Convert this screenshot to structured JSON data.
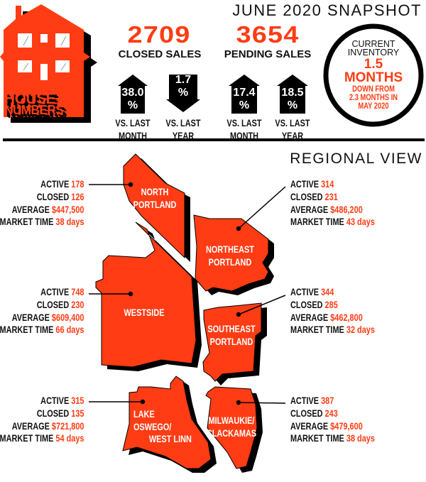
{
  "colors": {
    "accent": "#ff3c14",
    "ink": "#111111",
    "shadow": "#000000"
  },
  "logo": {
    "line1": "HOUSE",
    "line2": "NUMBERS",
    "icon": "house-icon"
  },
  "header": {
    "title": "JUNE 2020 SNAPSHOT"
  },
  "closed_sales": {
    "value": "2709",
    "label": "CLOSED SALES",
    "changes": [
      {
        "value": "38.0",
        "unit": "%",
        "direction": "up",
        "label1": "VS. LAST",
        "label2": "MONTH"
      },
      {
        "value": "1.7",
        "unit": "%",
        "direction": "down",
        "label1": "VS. LAST",
        "label2": "YEAR"
      }
    ]
  },
  "pending_sales": {
    "value": "3654",
    "label": "PENDING SALES",
    "changes": [
      {
        "value": "17.4",
        "unit": "%",
        "direction": "up",
        "label1": "VS. LAST",
        "label2": "MONTH"
      },
      {
        "value": "18.5",
        "unit": "%",
        "direction": "up",
        "label1": "VS. LAST",
        "label2": "YEAR"
      }
    ]
  },
  "inventory": {
    "line1": "CURRENT",
    "line2": "INVENTORY",
    "value": "1.5",
    "unit": "MONTHS",
    "note1": "DOWN FROM",
    "note2": "2.3 MONTHS IN",
    "note3": "MAY 2020"
  },
  "regional": {
    "title": "REGIONAL VIEW",
    "stat_labels": {
      "active": "ACTIVE",
      "closed": "CLOSED",
      "average": "AVERAGE",
      "market_time": "MARKET TIME"
    },
    "regions": [
      {
        "name1": "NORTH",
        "name2": "PORTLAND",
        "active": "178",
        "closed": "126",
        "average": "$447,500",
        "market_time": "38 days"
      },
      {
        "name1": "NORTHEAST",
        "name2": "PORTLAND",
        "active": "314",
        "closed": "231",
        "average": "$486,200",
        "market_time": "43 days"
      },
      {
        "name1": "WESTSIDE",
        "active": "748",
        "closed": "230",
        "average": "$609,400",
        "market_time": "66 days"
      },
      {
        "name1": "SOUTHEAST",
        "name2": "PORTLAND",
        "active": "344",
        "closed": "285",
        "average": "$462,800",
        "market_time": "32 days"
      },
      {
        "name1": "LAKE",
        "name2": "OSWEGO/",
        "name3": "WEST LINN",
        "active": "315",
        "closed": "135",
        "average": "$721,800",
        "market_time": "54 days"
      },
      {
        "name1": "MILWAUKIE/",
        "name2": "CLACKAMAS",
        "active": "387",
        "closed": "243",
        "average": "$479,600",
        "market_time": "38 days"
      }
    ]
  }
}
